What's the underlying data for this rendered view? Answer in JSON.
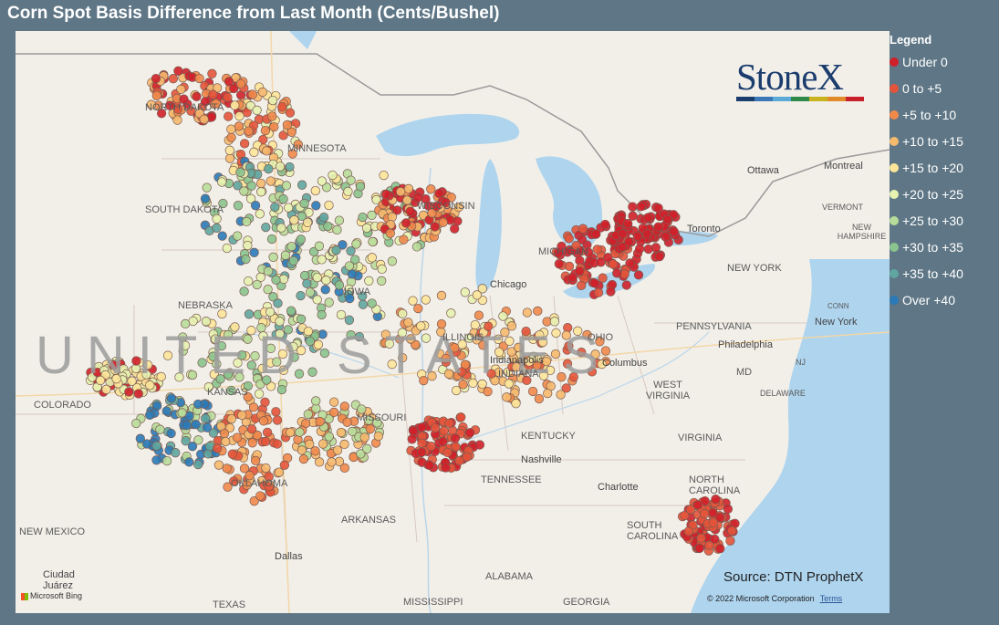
{
  "title": "Corn Spot Basis Difference from Last Month (Cents/Bushel)",
  "legend": {
    "title": "Legend",
    "items": [
      {
        "label": "Under 0",
        "color": "#d0202a"
      },
      {
        "label": "0 to +5",
        "color": "#e4543a"
      },
      {
        "label": "+5 to +10",
        "color": "#f08a4b"
      },
      {
        "label": "+10 to +15",
        "color": "#f6ba6f"
      },
      {
        "label": "+15 to +20",
        "color": "#fce59a"
      },
      {
        "label": "+20 to +25",
        "color": "#e7f1b0"
      },
      {
        "label": "+25 to +30",
        "color": "#b8dc9a"
      },
      {
        "label": "+30 to +35",
        "color": "#8ac38e"
      },
      {
        "label": "+35 to +40",
        "color": "#5fa6a0"
      },
      {
        "label": "Over +40",
        "color": "#2a7ab8"
      }
    ]
  },
  "logo": {
    "text": "StoneX",
    "bar_colors": [
      "#1b3d6d",
      "#3a78b8",
      "#5aa9d6",
      "#2f8a4a",
      "#c8b21e",
      "#e08a2a",
      "#c8202a"
    ]
  },
  "source": "Source: DTN ProphetX",
  "copyright": "© 2022 Microsoft Corporation",
  "terms": "Terms",
  "bing": "Microsoft Bing",
  "country_label": "UNITED STATES",
  "state_labels": [
    "NORTH DAKOTA",
    "MINNESOTA",
    "SOUTH DAKOTA",
    "WISCONSIN",
    "MICHIGAN",
    "NEBRASKA",
    "IOWA",
    "COLORADO",
    "KANSAS",
    "MISSOURI",
    "ILLINOIS",
    "INDIANA",
    "OHIO",
    "PENNSYLVANIA",
    "NEW YORK",
    "WEST VIRGINIA",
    "KENTUCKY",
    "VIRGINIA",
    "TENNESSEE",
    "NORTH CAROLINA",
    "SOUTH CAROLINA",
    "OKLAHOMA",
    "ARKANSAS",
    "NEW MEXICO",
    "TEXAS",
    "MISSISSIPPI",
    "ALABAMA",
    "GEORGIA",
    "MD",
    "DELAWARE",
    "NJ",
    "VERMONT",
    "NEW HAMPSHIRE",
    "CONN"
  ],
  "city_labels": [
    "Ottawa",
    "Montreal",
    "Toronto",
    "Chicago",
    "Columbus",
    "Indianapolis",
    "Nashville",
    "Charlotte",
    "Philadelphia",
    "New York",
    "Dallas",
    "Ciudad Juárez"
  ]
}
